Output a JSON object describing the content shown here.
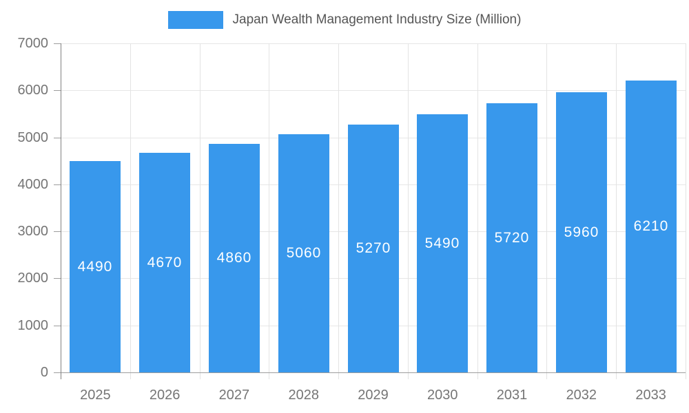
{
  "chart_data": {
    "type": "bar",
    "title": "Japan Wealth Management Industry Size (Million)",
    "categories": [
      "2025",
      "2026",
      "2027",
      "2028",
      "2029",
      "2030",
      "2031",
      "2032",
      "2033"
    ],
    "values": [
      4490,
      4670,
      4860,
      5060,
      5270,
      5490,
      5720,
      5960,
      6210
    ],
    "xlabel": "",
    "ylabel": "",
    "ylim": [
      0,
      7000
    ],
    "ytick_step": 1000,
    "ytick_labels": [
      "0",
      "1000",
      "2000",
      "3000",
      "4000",
      "5000",
      "6000",
      "7000"
    ],
    "grid": true,
    "legend_position": "top",
    "bar_color": "#3898ec",
    "bar_value_label_color": "#ffffff",
    "axis_text_color": "#757575",
    "legend_text_color": "#555555"
  }
}
